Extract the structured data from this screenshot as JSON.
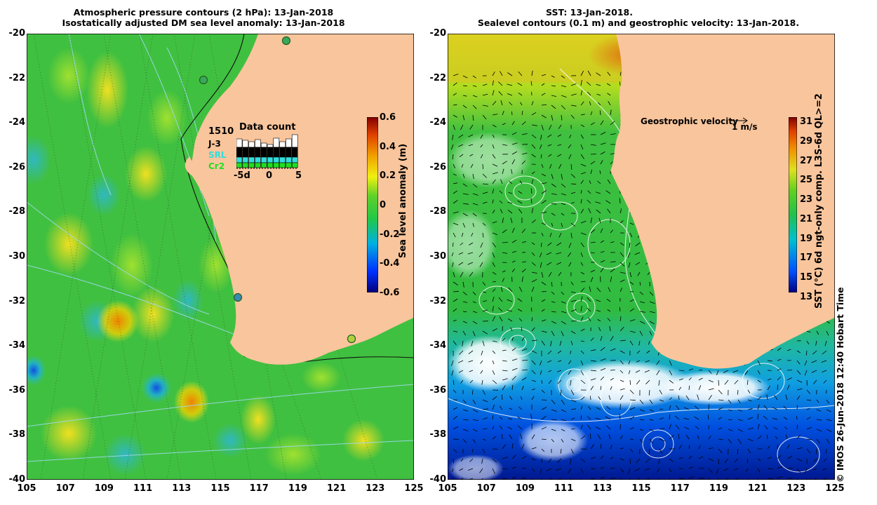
{
  "left_panel": {
    "title_line1": "Atmospheric pressure contours (2 hPa): 13-Jan-2018",
    "title_line2": "Isostatically adjusted DM sea level anomaly: 13-Jan-2018",
    "colorbar_label": "Sea level anomaly (m)",
    "colorbar_ticks": [
      "0.6",
      "0.4",
      "0.2",
      "0",
      "-0.2",
      "-0.4",
      "-0.6"
    ],
    "data_count": {
      "title": "Data count",
      "count": "1510",
      "series": [
        {
          "name": "J-3",
          "color": "#000000"
        },
        {
          "name": "SRL",
          "color": "#33dddd"
        },
        {
          "name": "Cr2",
          "color": "#22cc22"
        }
      ],
      "xticks": [
        "-5d",
        "0",
        "5"
      ]
    }
  },
  "right_panel": {
    "title_line1": "SST: 13-Jan-2018.",
    "title_line2": "Sealevel contours (0.1 m) and geostrophic velocity: 13-Jan-2018.",
    "velocity_label": "Geostrophic velocity",
    "velocity_scale": "1 m/s",
    "colorbar_label": "SST (°C) 6d ngt-only comp. L3S-6d QL>=2",
    "colorbar_ticks": [
      "31",
      "29",
      "27",
      "25",
      "23",
      "21",
      "19",
      "17",
      "15",
      "13"
    ]
  },
  "axes": {
    "y_ticks": [
      "-20",
      "-22",
      "-24",
      "-26",
      "-28",
      "-30",
      "-32",
      "-34",
      "-36",
      "-38",
      "-40"
    ],
    "x_ticks": [
      "105",
      "107",
      "109",
      "111",
      "113",
      "115",
      "117",
      "119",
      "121",
      "123",
      "125"
    ]
  },
  "copyright": "©  IMOS 26-Jun-2018 12:40 Hobart Time",
  "colors": {
    "land": "#f9c59c",
    "ocean_green": "#3ec23e",
    "sla_colormap": [
      "#00007a",
      "#0030ff",
      "#00b0e0",
      "#20c848",
      "#5fd02a",
      "#f0f010",
      "#f0a000",
      "#e04000",
      "#800000"
    ],
    "sst_colormap": [
      "#000080",
      "#0050ff",
      "#00c0d0",
      "#20c050",
      "#60d020",
      "#e0e020",
      "#f09000",
      "#e04000",
      "#800000"
    ]
  }
}
